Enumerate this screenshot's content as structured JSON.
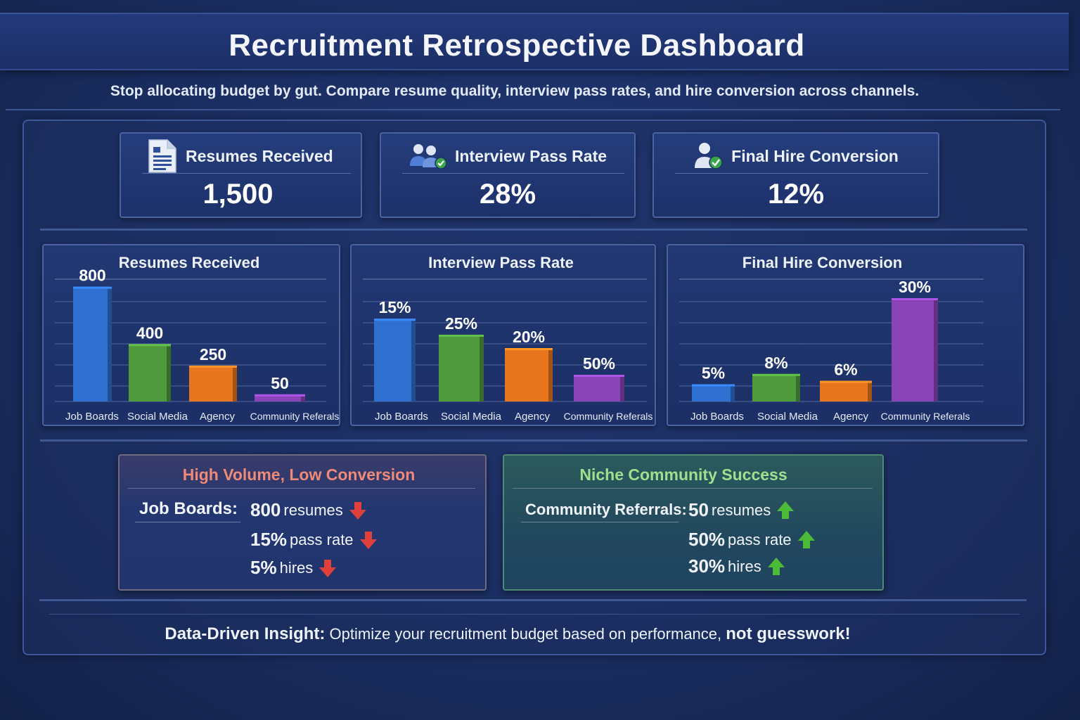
{
  "header": {
    "title": "Recruitment Retrospective Dashboard",
    "subtitle": "Stop allocating budget by gut. Compare resume quality, interview pass rates, and hire conversion across channels."
  },
  "kpis": [
    {
      "label": "Resumes Received",
      "value": "1,500",
      "icon": "resume-document-icon"
    },
    {
      "label": "Interview Pass Rate",
      "value": "28%",
      "icon": "people-check-icon"
    },
    {
      "label": "Final Hire Conversion",
      "value": "12%",
      "icon": "person-check-icon"
    }
  ],
  "colors": {
    "job_boards": "#2f6fd0",
    "social_media": "#4f9a3c",
    "agency": "#e7761f",
    "community_referrals": "#8a44b8",
    "negative": "#e8453f",
    "positive": "#4fbf3a"
  },
  "chart_data": [
    {
      "type": "bar",
      "title": "Resumes Received",
      "categories": [
        "Job Boards",
        "Social Media",
        "Agency",
        "Community Referals"
      ],
      "values": [
        800,
        400,
        250,
        50
      ],
      "labels": [
        "800",
        "400",
        "250",
        "50"
      ],
      "xlabel": "",
      "ylabel": "",
      "ylim": [
        0,
        960
      ],
      "grid": true
    },
    {
      "type": "bar",
      "title": "Interview Pass Rate",
      "categories": [
        "Job Boards",
        "Social Media",
        "Agency",
        "Community Referals"
      ],
      "values": [
        15,
        25,
        20,
        50
      ],
      "labels": [
        "15%",
        "25%",
        "20%",
        "50%"
      ],
      "bar_heights_note_values": [
        0.62,
        0.5,
        0.4,
        0.2
      ],
      "xlabel": "",
      "ylabel": "",
      "grid": true
    },
    {
      "type": "bar",
      "title": "Final Hire Conversion",
      "categories": [
        "Job Boards",
        "Social Media",
        "Agency",
        "Community Referals"
      ],
      "values": [
        5,
        8,
        6,
        30
      ],
      "labels": [
        "5%",
        "8%",
        "6%",
        "30%"
      ],
      "xlabel": "",
      "ylabel": "",
      "ylim": [
        0,
        40
      ],
      "grid": true
    }
  ],
  "insights": {
    "negative": {
      "title": "High Volume, Low Conversion",
      "label": "Job Boards:",
      "lines": [
        {
          "num": "800",
          "text": "resumes"
        },
        {
          "num": "15%",
          "text": "pass rate"
        },
        {
          "num": "5%",
          "text": "hires"
        }
      ]
    },
    "positive": {
      "title": "Niche Community Success",
      "label": "Community Referrals:",
      "lines": [
        {
          "num": "50",
          "text": "resumes"
        },
        {
          "num": "50%",
          "text": "pass rate"
        },
        {
          "num": "30%",
          "text": "hires"
        }
      ]
    }
  },
  "footer": {
    "lead": "Data-Driven Insight:",
    "middle": " Optimize your recruitment budget based on performance, ",
    "tail": "not guesswork!"
  }
}
